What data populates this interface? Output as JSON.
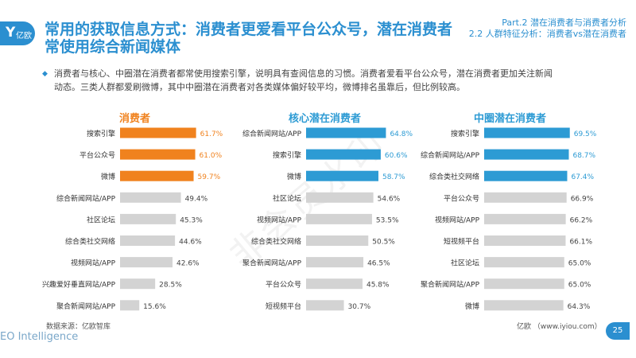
{
  "header": {
    "logo_mark": "Y",
    "logo_text": "亿欧",
    "title_line1": "常用的获取信息方式：消费者更爱看平台公众号，潜在消费者",
    "title_line2": "常使用综合新闻媒体",
    "part_line1": "Part.2 潜在消费者与消费者分析",
    "part_line2": "2.2 人群特征分析：消费者vs潜在消费者"
  },
  "description": {
    "bullet": "◆",
    "line1": "消费者与核心、中圈潜在消费者都常使用搜索引擎，说明具有查阅信息的习惯。消费者爱看平台公众号，潜在消费者更加关注新闻",
    "line2": "动态。三类人群都爱刷微博，其中中圈潜在消费者对各类媒体偏好较平均，微博排名虽靠后，但比例较高。"
  },
  "watermark": "非会员水印",
  "footer": {
    "source": "数据来源：亿欧智库",
    "site": "亿欧 （www.iyiou.com）",
    "brand": "EO Intelligence",
    "page": "25"
  },
  "colors": {
    "brand": "#2b8fd0",
    "orange": "#f0821e",
    "blue": "#2d9bd4",
    "gray": "#d3d3d3",
    "highlight_text_orange": "#f0821e",
    "highlight_text_blue": "#2d9bd4",
    "normal_text": "#444444"
  },
  "chart_data": [
    {
      "type": "bar",
      "orientation": "horizontal",
      "title": "消费者",
      "title_color": "#f0821e",
      "unit": "%",
      "xlim": [
        0,
        100
      ],
      "categories": [
        "搜索引擎",
        "平台公众号",
        "微博",
        "综合新闻网站/APP",
        "社区论坛",
        "综合类社交网络",
        "视频网站/APP",
        "兴趣爱好垂直网站/APP",
        "聚合新闻网站/APP"
      ],
      "values": [
        61.7,
        61.0,
        59.7,
        49.4,
        45.3,
        44.6,
        42.6,
        28.5,
        15.6
      ],
      "labels": [
        "61.7%",
        "61.0%",
        "59.7%",
        "49.4%",
        "45.3%",
        "44.6%",
        "42.6%",
        "28.5%",
        "15.6%"
      ],
      "highlight_top": 3
    },
    {
      "type": "bar",
      "orientation": "horizontal",
      "title": "核心潜在消费者",
      "title_color": "#2d9bd4",
      "unit": "%",
      "xlim": [
        0,
        100
      ],
      "categories": [
        "综合新闻网站/APP",
        "搜索引擎",
        "微博",
        "社区论坛",
        "视频网站/APP",
        "综合类社交网络",
        "聚合新闻网站/APP",
        "平台公众号",
        "短视频平台"
      ],
      "values": [
        64.8,
        60.6,
        58.7,
        54.6,
        53.5,
        50.5,
        46.5,
        45.8,
        30.7
      ],
      "labels": [
        "64.8%",
        "60.6%",
        "58.7%",
        "54.6%",
        "53.5%",
        "50.5%",
        "46.5%",
        "45.8%",
        "30.7%"
      ],
      "highlight_top": 3
    },
    {
      "type": "bar",
      "orientation": "horizontal",
      "title": "中圈潜在消费者",
      "title_color": "#2d9bd4",
      "unit": "%",
      "xlim": [
        0,
        100
      ],
      "categories": [
        "搜索引擎",
        "综合新闻网站/APP",
        "综合类社交网络",
        "平台公众号",
        "视频网站/APP",
        "短视频平台",
        "社区论坛",
        "聚合新闻网站/APP",
        "微博"
      ],
      "values": [
        69.5,
        68.7,
        67.4,
        66.9,
        66.2,
        66.1,
        65.0,
        65.0,
        64.3
      ],
      "labels": [
        "69.5%",
        "68.7%",
        "67.4%",
        "66.9%",
        "66.2%",
        "66.1%",
        "65.0%",
        "65.0%",
        "64.3%"
      ],
      "highlight_top": 3
    }
  ]
}
